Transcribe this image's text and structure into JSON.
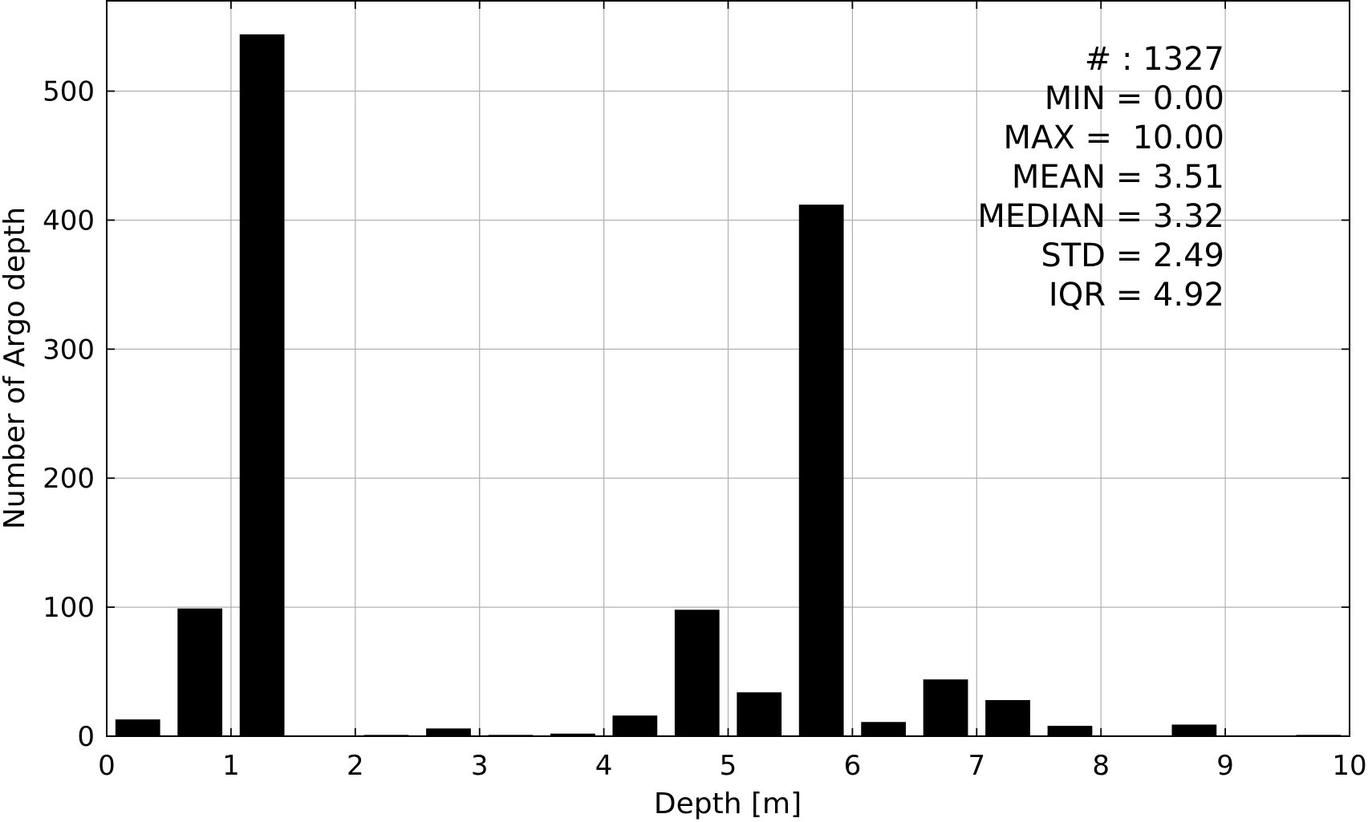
{
  "chart_data": {
    "type": "bar",
    "xlabel": "Depth [m]",
    "ylabel": "Number of Argo depth",
    "xlim": [
      0,
      10
    ],
    "ylim": [
      0,
      570
    ],
    "xticks": [
      "0",
      "1",
      "2",
      "3",
      "4",
      "5",
      "6",
      "7",
      "8",
      "9",
      "10"
    ],
    "yticks": [
      "0",
      "100",
      "200",
      "300",
      "400",
      "500"
    ],
    "grid": true,
    "bin_width": 0.5,
    "bars": [
      {
        "x": 0.25,
        "value": 13
      },
      {
        "x": 0.75,
        "value": 99
      },
      {
        "x": 1.25,
        "value": 544
      },
      {
        "x": 1.75,
        "value": 0
      },
      {
        "x": 2.25,
        "value": 1
      },
      {
        "x": 2.75,
        "value": 6
      },
      {
        "x": 3.25,
        "value": 1
      },
      {
        "x": 3.75,
        "value": 2
      },
      {
        "x": 4.25,
        "value": 16
      },
      {
        "x": 4.75,
        "value": 98
      },
      {
        "x": 5.25,
        "value": 34
      },
      {
        "x": 5.75,
        "value": 412
      },
      {
        "x": 6.25,
        "value": 11
      },
      {
        "x": 6.75,
        "value": 44
      },
      {
        "x": 7.25,
        "value": 28
      },
      {
        "x": 7.75,
        "value": 8
      },
      {
        "x": 8.25,
        "value": 0
      },
      {
        "x": 8.75,
        "value": 9
      },
      {
        "x": 9.25,
        "value": 0
      },
      {
        "x": 9.75,
        "value": 1
      }
    ],
    "stats": [
      "# : 1327",
      "MIN = 0.00",
      "MAX =  10.00",
      "MEAN = 3.51",
      "MEDIAN = 3.32",
      "STD = 2.49",
      "IQR = 4.92"
    ]
  }
}
